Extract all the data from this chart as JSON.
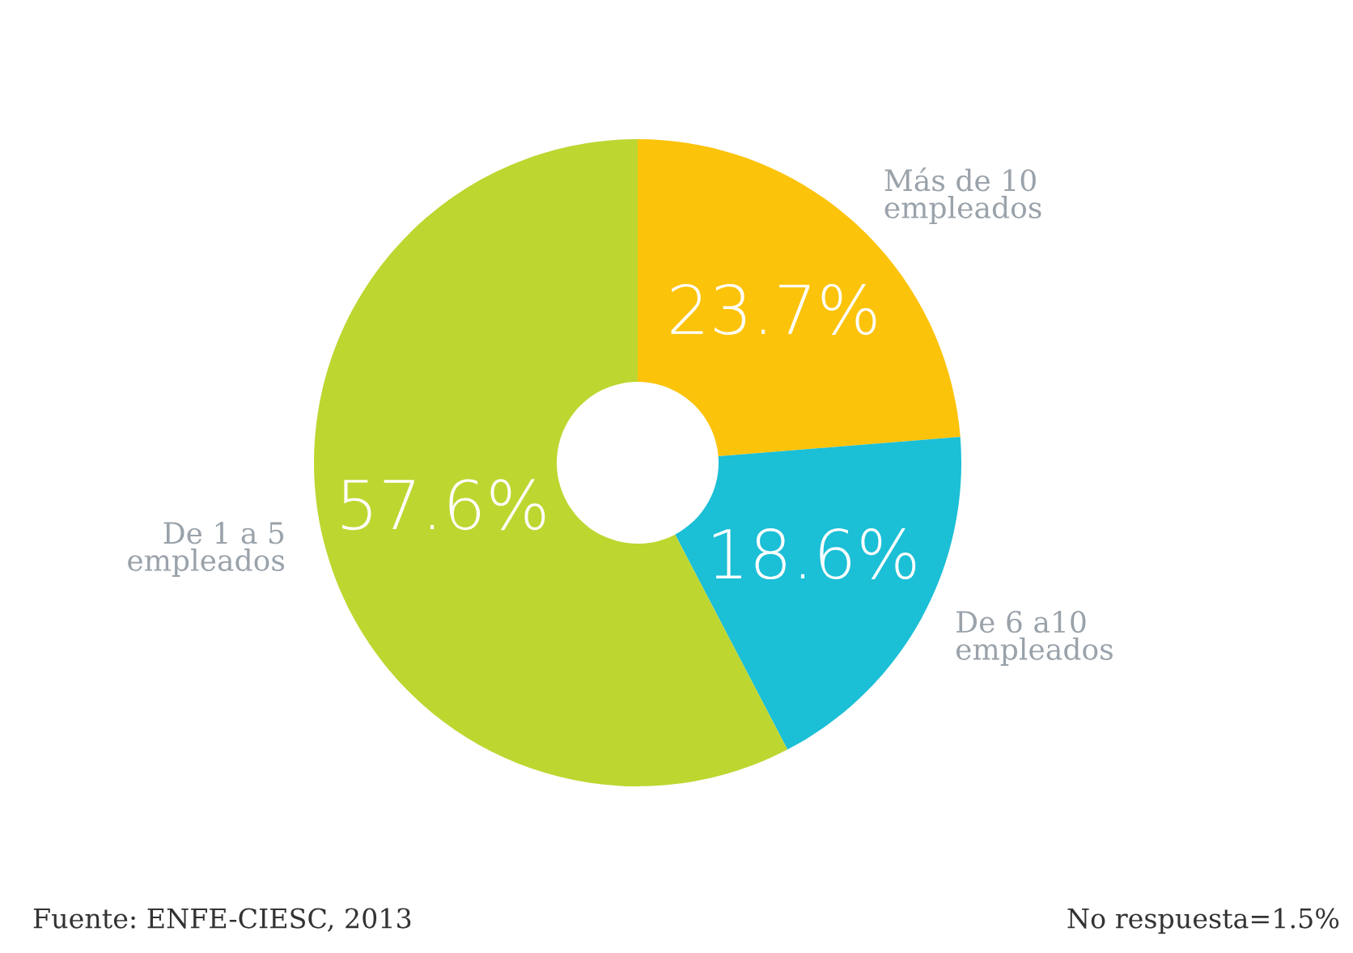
{
  "chart_data": {
    "type": "donut",
    "categories": [
      "Más de 10\nempleados",
      "De 6 a10\nempleados",
      "De 1 a 5\nempleados"
    ],
    "values": [
      23.7,
      18.6,
      57.6
    ],
    "colors": [
      "#fcc30b",
      "#1bbfd6",
      "#bed630"
    ],
    "value_labels": [
      "23.7%",
      "18.6%",
      "57.6%"
    ],
    "annotations": [
      "Fuente: ENFE-CIESC, 2013",
      "No respuesta=1.5%"
    ],
    "legend": false
  }
}
